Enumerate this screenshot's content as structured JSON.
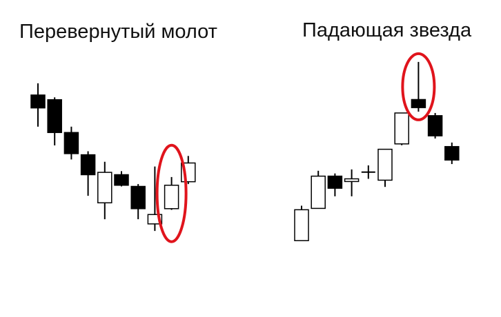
{
  "colors": {
    "bullish_fill": "#ffffff",
    "bearish_fill": "#000000",
    "outline": "#000000",
    "highlight": "#e0141c",
    "background": "#ffffff"
  },
  "chart_data": [
    {
      "type": "candlestick",
      "title": "Перевернутый молот",
      "grid": false,
      "axes_visible": false,
      "highlighted_candle_index": 8,
      "candles": [
        {
          "open": 0.52,
          "close": 0.63,
          "high": 0.73,
          "low": 0.36,
          "direction": "bearish"
        },
        {
          "open": 0.31,
          "close": 0.59,
          "high": 0.61,
          "low": 0.2,
          "direction": "bearish"
        },
        {
          "open": 0.13,
          "close": 0.31,
          "high": 0.36,
          "low": 0.08,
          "direction": "bearish"
        },
        {
          "open": -0.05,
          "close": 0.12,
          "high": 0.15,
          "low": -0.23,
          "direction": "bearish"
        },
        {
          "open": -0.03,
          "close": -0.29,
          "high": 0.06,
          "low": -0.43,
          "direction": "bullish"
        },
        {
          "open": -0.14,
          "close": -0.05,
          "high": -0.02,
          "low": -0.15,
          "direction": "bearish"
        },
        {
          "open": -0.34,
          "close": -0.15,
          "high": -0.13,
          "low": -0.43,
          "direction": "bearish"
        },
        {
          "open": -0.47,
          "close": -0.39,
          "high": 0.02,
          "low": -0.53,
          "direction": "bullish"
        },
        {
          "open": -0.34,
          "close": -0.14,
          "high": -0.07,
          "low": -0.35,
          "direction": "bullish"
        },
        {
          "open": -0.11,
          "close": 0.05,
          "high": 0.11,
          "low": -0.13,
          "direction": "bullish"
        }
      ]
    },
    {
      "type": "candlestick",
      "title": "Падающая звезда",
      "grid": false,
      "axes_visible": false,
      "highlighted_candle_index": 7,
      "candles": [
        {
          "open": -0.56,
          "close": -0.33,
          "high": -0.3,
          "low": -0.56,
          "direction": "bullish"
        },
        {
          "open": -0.32,
          "close": -0.08,
          "high": -0.04,
          "low": -0.32,
          "direction": "bullish"
        },
        {
          "open": -0.17,
          "close": -0.08,
          "high": -0.06,
          "low": -0.23,
          "direction": "bearish"
        },
        {
          "open": -0.12,
          "close": -0.1,
          "high": -0.03,
          "low": -0.23,
          "direction": "bullish"
        },
        {
          "open": -0.05,
          "close": -0.05,
          "high": 0.0,
          "low": -0.1,
          "direction": "doji"
        },
        {
          "open": -0.11,
          "close": 0.12,
          "high": 0.12,
          "low": -0.16,
          "direction": "bullish"
        },
        {
          "open": 0.16,
          "close": 0.39,
          "high": 0.39,
          "low": 0.15,
          "direction": "bullish"
        },
        {
          "open": 0.43,
          "close": 0.49,
          "high": 0.77,
          "low": 0.4,
          "direction": "bearish"
        },
        {
          "open": 0.22,
          "close": 0.37,
          "high": 0.39,
          "low": 0.2,
          "direction": "bearish"
        },
        {
          "open": 0.04,
          "close": 0.14,
          "high": 0.17,
          "low": 0.01,
          "direction": "bearish"
        }
      ]
    }
  ]
}
